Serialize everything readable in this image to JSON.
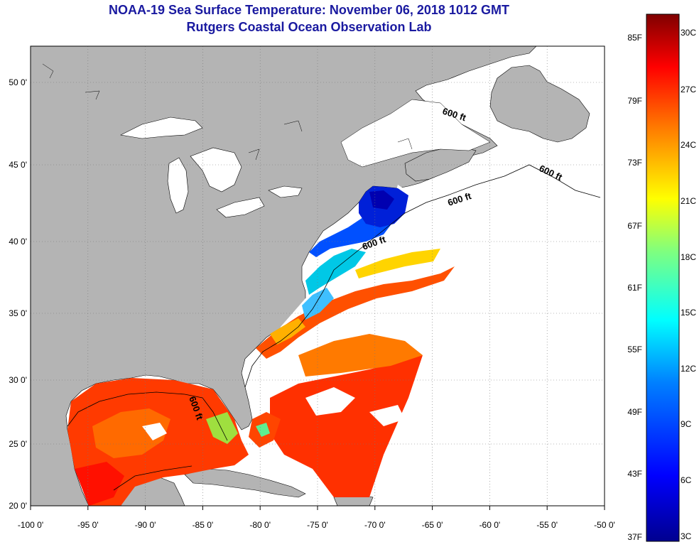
{
  "header": {
    "title": "NOAA-19 Sea Surface Temperature:  November 06, 2018 1012 GMT",
    "subtitle": "Rutgers Coastal Ocean Observation Lab"
  },
  "map": {
    "lon_ticks": [
      "-100 0'",
      "-95 0'",
      "-90 0'",
      "-85 0'",
      "-80 0'",
      "-75 0'",
      "-70 0'",
      "-65 0'",
      "-60 0'",
      "-55 0'",
      "-50 0'"
    ],
    "lat_ticks": [
      "50 0'",
      "45 0'",
      "40 0'",
      "35 0'",
      "30 0'",
      "25 0'",
      "20 0'"
    ],
    "isobath_labels": [
      "600 ft",
      "600 ft",
      "600 ft",
      "600 ft",
      "600 ft"
    ],
    "colors": {
      "land": "#b4b4b4",
      "cloud": "#ffffff",
      "grid": "#777777"
    }
  },
  "colorbar": {
    "fahrenheit": [
      "85F",
      "79F",
      "73F",
      "67F",
      "61F",
      "55F",
      "49F",
      "43F",
      "37F"
    ],
    "celsius": [
      "30C",
      "27C",
      "24C",
      "21C",
      "18C",
      "15C",
      "12C",
      "9C",
      "6C",
      "3C"
    ],
    "colormap": [
      "#00008f",
      "#0000ff",
      "#007fff",
      "#00ffff",
      "#7fff7f",
      "#ffff00",
      "#ff7f00",
      "#ff0000",
      "#7f0000"
    ]
  }
}
